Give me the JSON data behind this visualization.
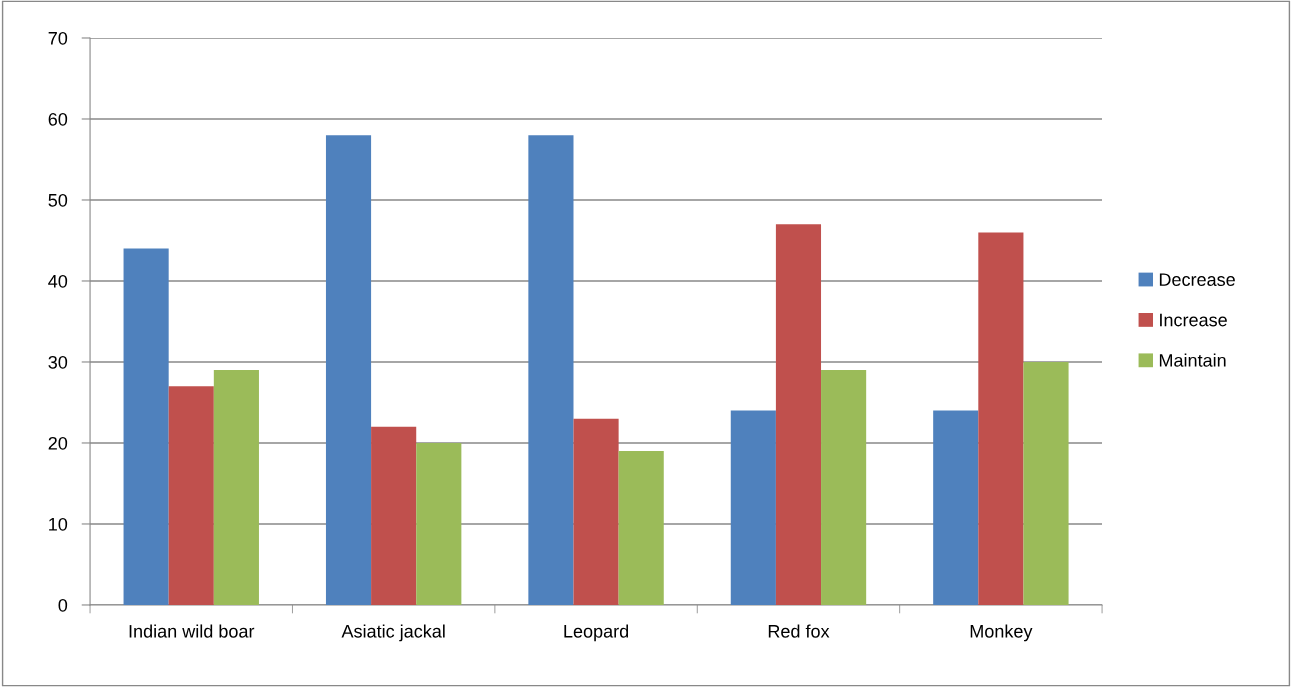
{
  "chart_data": {
    "type": "bar",
    "categories": [
      "Indian wild boar",
      "Asiatic jackal",
      "Leopard",
      "Red fox",
      "Monkey"
    ],
    "series": [
      {
        "name": "Decrease",
        "color": "#4f81bd",
        "values": [
          44,
          58,
          58,
          24,
          24
        ]
      },
      {
        "name": "Increase",
        "color": "#c0504d",
        "values": [
          27,
          22,
          23,
          47,
          46
        ]
      },
      {
        "name": "Maintain",
        "color": "#9bbb59",
        "values": [
          29,
          20,
          19,
          29,
          30
        ]
      }
    ],
    "ylim": [
      0,
      70
    ],
    "yticks": [
      0,
      10,
      20,
      30,
      40,
      50,
      60,
      70
    ],
    "grid": "y",
    "legend": "right"
  }
}
